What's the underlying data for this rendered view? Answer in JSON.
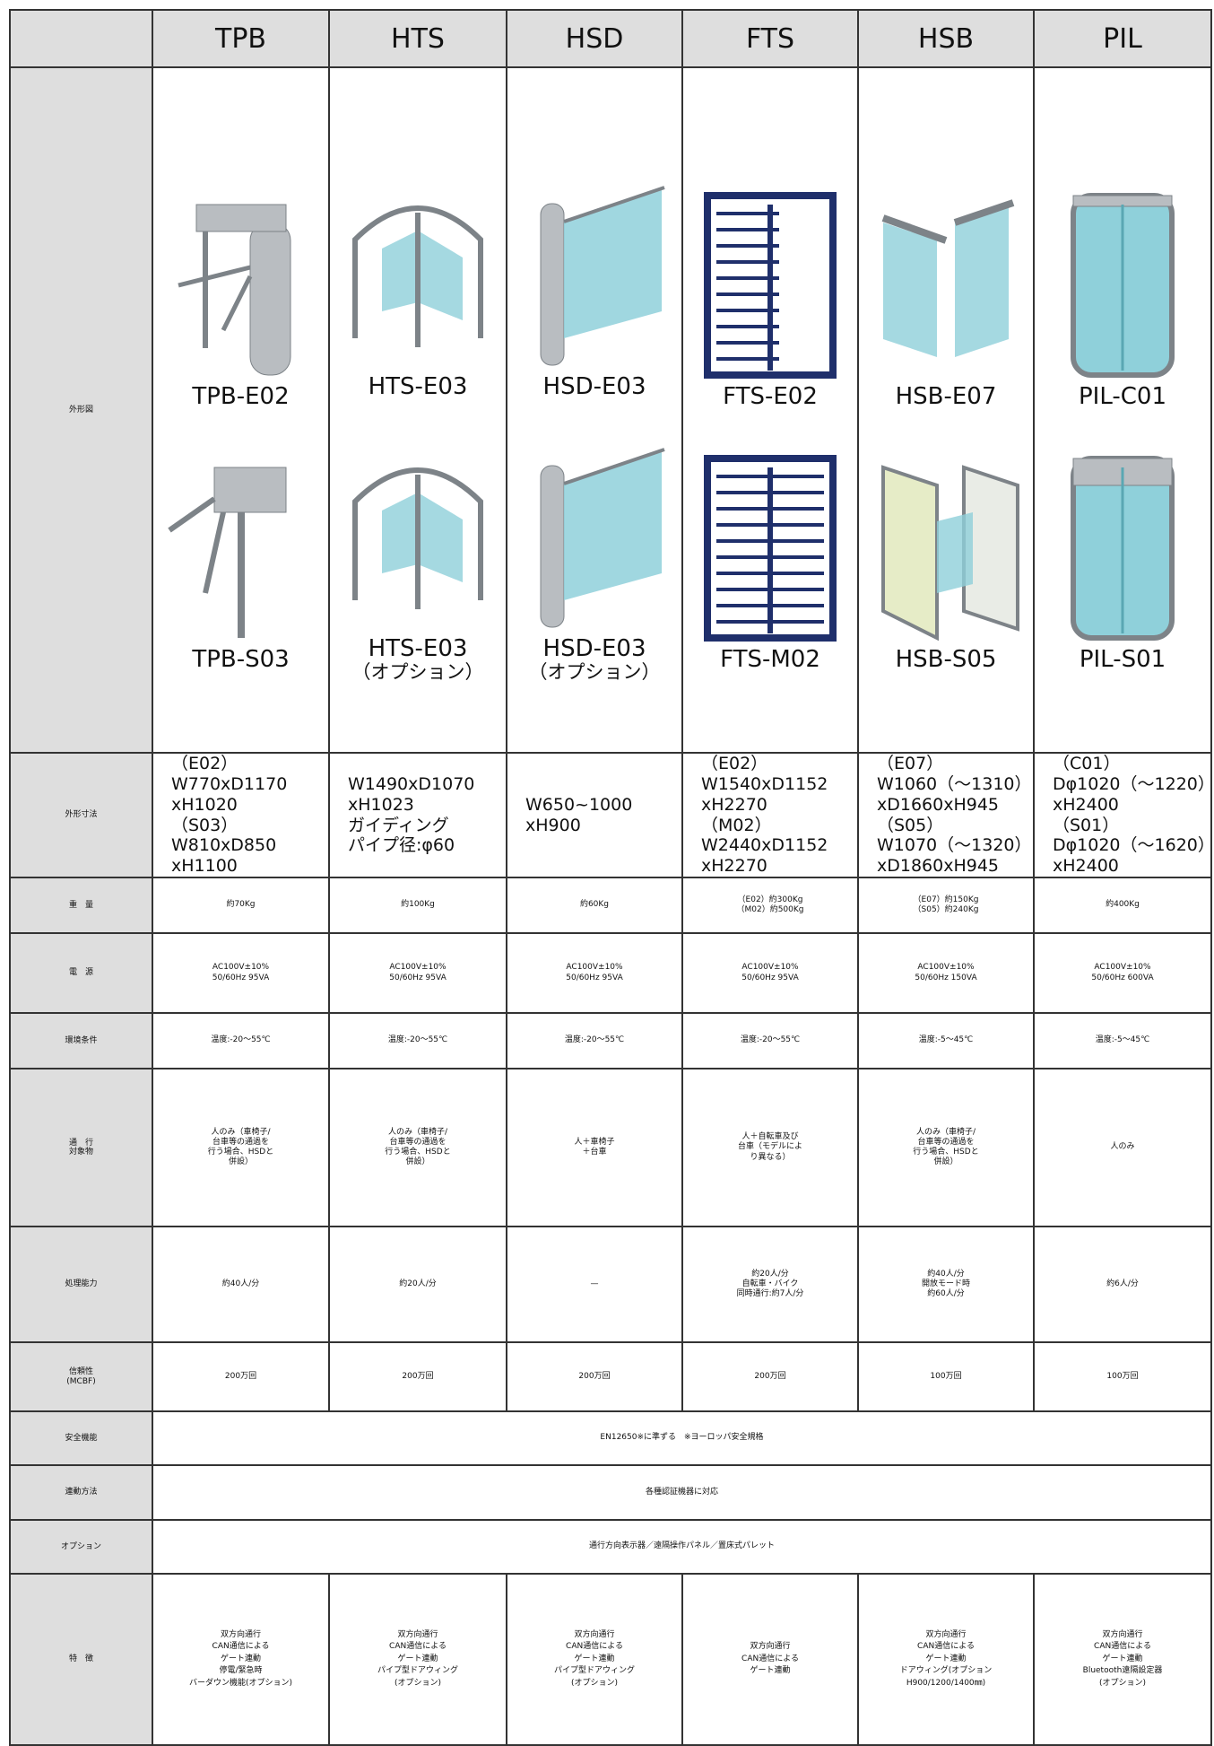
{
  "table": {
    "header": [
      "TPB",
      "HTS",
      "HSD",
      "FTS",
      "HSB",
      "PIL"
    ],
    "outline": {
      "label": "外形図",
      "models": [
        {
          "top": "TPB-E02",
          "bottom": "TPB-S03"
        },
        {
          "top": "HTS-E03",
          "bottom": "HTS-E03",
          "bottom_note": "（オプション）"
        },
        {
          "top": "HSD-E03",
          "bottom": "HSD-E03",
          "bottom_note": "（オプション）"
        },
        {
          "top": "FTS-E02",
          "bottom": "FTS-M02"
        },
        {
          "top": "HSB-E07",
          "bottom": "HSB-S05"
        },
        {
          "top": "PIL-C01",
          "bottom": "PIL-S01"
        }
      ]
    },
    "rows": [
      {
        "label": [
          "外形寸法"
        ],
        "cells": [
          [
            "（E02）",
            "W770xD1170",
            "xH1020",
            "（S03）",
            "W810xD850",
            "xH1100"
          ],
          [
            "W1490xD1070",
            "xH1023",
            "ガイディング",
            "パイプ径:φ60"
          ],
          [
            "W650~1000",
            "xH900"
          ],
          [
            "（E02）",
            "W1540xD1152",
            "xH2270",
            "（M02）",
            "W2440xD1152",
            "xH2270"
          ],
          [
            "（E07）",
            "W1060（〜1310）",
            "xD1660xH945",
            "（S05）",
            "W1070（〜1320）",
            "xD1860xH945"
          ],
          [
            "（C01）",
            "Dφ1020（〜1220）",
            "xH2400",
            "（S01）",
            "Dφ1020（〜1620）",
            "xH2400"
          ]
        ]
      },
      {
        "label": [
          "重　量"
        ],
        "cells": [
          [
            "約70Kg"
          ],
          [
            "約100Kg"
          ],
          [
            "約60Kg"
          ],
          [
            "（E02）約300Kg",
            "（M02）約500Kg"
          ],
          [
            "（E07）約150Kg",
            "（S05）約240Kg"
          ],
          [
            "約400Kg"
          ]
        ]
      },
      {
        "label": [
          "電　源"
        ],
        "cells": [
          [
            "AC100V±10%",
            "50/60Hz 95VA"
          ],
          [
            "AC100V±10%",
            "50/60Hz 95VA"
          ],
          [
            "AC100V±10%",
            "50/60Hz 95VA"
          ],
          [
            "AC100V±10%",
            "50/60Hz 95VA"
          ],
          [
            "AC100V±10%",
            "50/60Hz 150VA"
          ],
          [
            "AC100V±10%",
            "50/60Hz 600VA"
          ]
        ]
      },
      {
        "label": [
          "環境条件"
        ],
        "cells": [
          [
            "温度:-20〜55℃"
          ],
          [
            "温度:-20〜55℃"
          ],
          [
            "温度:-20〜55℃"
          ],
          [
            "温度:-20〜55℃"
          ],
          [
            "温度:-5〜45℃"
          ],
          [
            "温度:-5〜45℃"
          ]
        ]
      },
      {
        "label": [
          "通　行",
          "対象物"
        ],
        "cells": [
          [
            "人のみ（車椅子/",
            "台車等の通過を",
            "行う場合、HSDと",
            "併設）"
          ],
          [
            "人のみ（車椅子/",
            "台車等の通過を",
            "行う場合、HSDと",
            "併設）"
          ],
          [
            "人＋車椅子",
            "＋台車"
          ],
          [
            "人＋自転車及び",
            "台車（モデルによ",
            "り異なる）"
          ],
          [
            "人のみ（車椅子/",
            "台車等の通過を",
            "行う場合、HSDと",
            "併設）"
          ],
          [
            "人のみ"
          ]
        ]
      },
      {
        "label": [
          "処理能力"
        ],
        "cells": [
          [
            "約40人/分"
          ],
          [
            "約20人/分"
          ],
          [
            "—"
          ],
          [
            "約20人/分",
            "自転車・バイク",
            "同時通行:約7人/分"
          ],
          [
            "約40人/分",
            "開放モード時",
            "約60人/分"
          ],
          [
            "約6人/分"
          ]
        ]
      },
      {
        "label": [
          "信頼性",
          "(MCBF)"
        ],
        "cells": [
          [
            "200万回"
          ],
          [
            "200万回"
          ],
          [
            "200万回"
          ],
          [
            "200万回"
          ],
          [
            "100万回"
          ],
          [
            "100万回"
          ]
        ]
      },
      {
        "label": [
          "安全機能"
        ],
        "span": "EN12650※に準ずる　※ヨーロッパ安全規格"
      },
      {
        "label": [
          "連動方法"
        ],
        "span": "各種認証機器に対応"
      },
      {
        "label": [
          "オプション"
        ],
        "span": "通行方向表示器／遠隔操作パネル／置床式パレット"
      },
      {
        "label": [
          "特　徴"
        ],
        "cells": [
          [
            "双方向通行",
            "CAN通信による",
            "ゲート連動",
            "停電/緊急時",
            "バーダウン機能(オプション)"
          ],
          [
            "双方向通行",
            "CAN通信による",
            "ゲート連動",
            "パイプ型ドアウィング",
            "(オプション)"
          ],
          [
            "双方向通行",
            "CAN通信による",
            "ゲート連動",
            "パイプ型ドアウィング",
            "(オプション)"
          ],
          [
            "双方向通行",
            "CAN通信による",
            "ゲート連動"
          ],
          [
            "双方向通行",
            "CAN通信による",
            "ゲート連動",
            "ドアウィング(オプション",
            "H900/1200/1400㎜)"
          ],
          [
            "双方向通行",
            "CAN通信による",
            "ゲート連動",
            "Bluetooth遠隔設定器",
            "(オプション)"
          ]
        ]
      }
    ]
  }
}
